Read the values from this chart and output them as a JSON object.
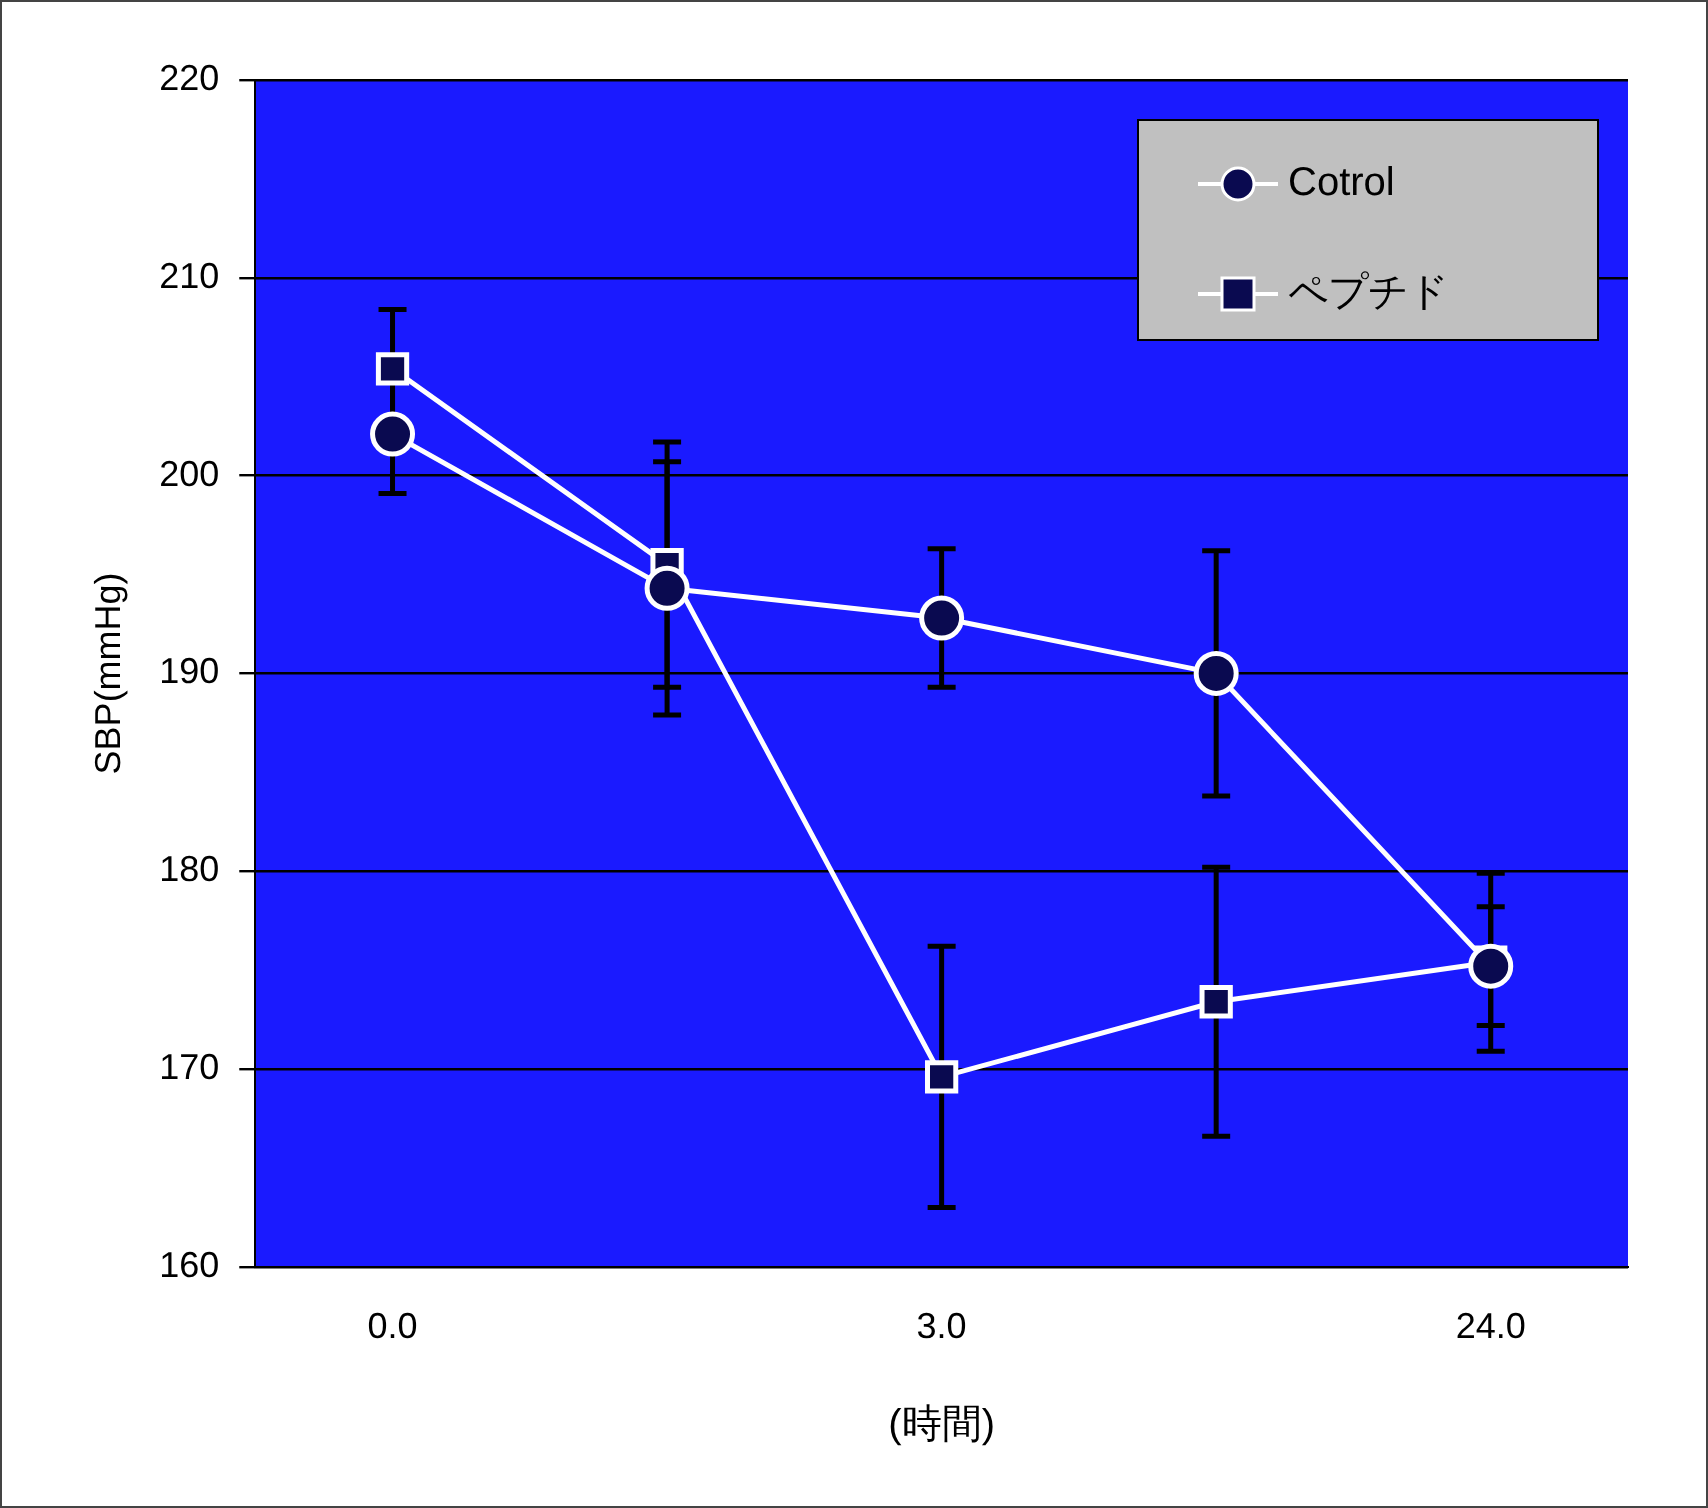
{
  "chart_data": {
    "type": "line",
    "xlabel": "(時間)",
    "ylabel": "SBP(mmHg)",
    "categories": [
      "0.0",
      null,
      "3.0",
      null,
      "24.0"
    ],
    "series": [
      {
        "name": "Cotrol",
        "color": "#0a0a50",
        "marker": "circle",
        "values": [
          202.1,
          194.3,
          192.8,
          190.0,
          175.2
        ],
        "errors": [
          3.0,
          6.4,
          3.5,
          6.2,
          3.0
        ]
      },
      {
        "name": "ペプチド",
        "color": "#0a0a50",
        "marker": "square",
        "values": [
          205.4,
          195.5,
          169.6,
          173.4,
          175.4
        ],
        "errors": [
          3.0,
          6.2,
          6.6,
          6.8,
          4.5
        ]
      }
    ],
    "ylim": [
      160,
      220
    ],
    "yticks": [
      160,
      170,
      180,
      190,
      200,
      210,
      220
    ],
    "grid": "y",
    "legend": "top right"
  }
}
